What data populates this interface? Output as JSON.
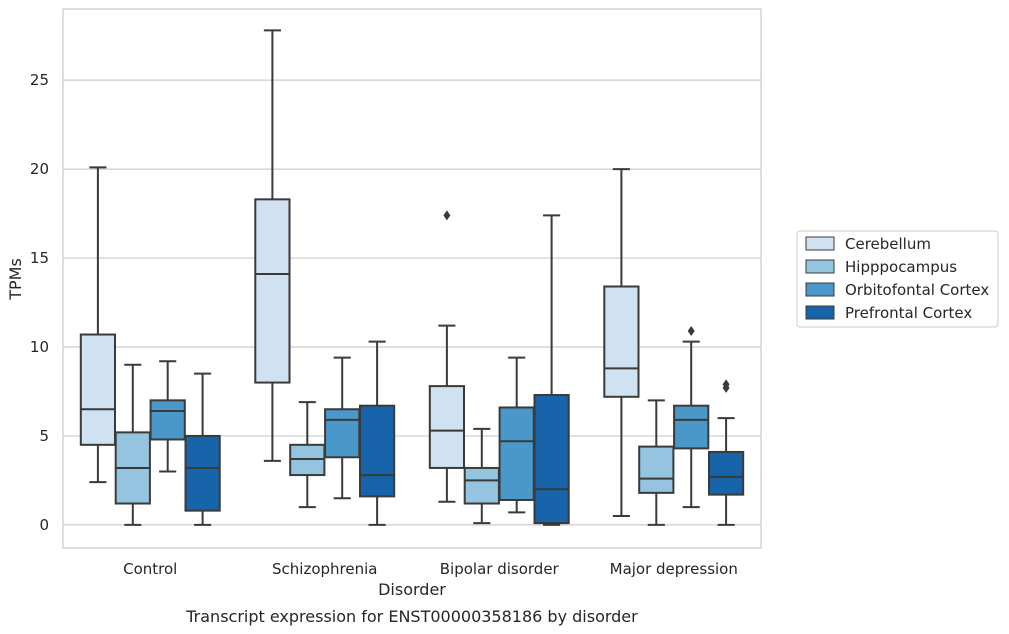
{
  "chart_data": {
    "type": "box",
    "xlabel": "Disorder",
    "ylabel": "TPMs",
    "caption": "Transcript expression for ENST00000358186 by disorder",
    "categories": [
      "Control",
      "Schizophrenia",
      "Bipolar disorder",
      "Major depression"
    ],
    "ylim": [
      -1.3,
      29
    ],
    "yticks": [
      0,
      5,
      10,
      15,
      20,
      25
    ],
    "grid": true,
    "legend_position": "right",
    "series": [
      {
        "name": "Cerebellum",
        "color": "#d0e1f2",
        "boxes": [
          {
            "whisker_low": 2.4,
            "q1": 4.5,
            "median": 6.5,
            "q3": 10.7,
            "whisker_high": 20.1,
            "outliers": []
          },
          {
            "whisker_low": 3.6,
            "q1": 8.0,
            "median": 14.1,
            "q3": 18.3,
            "whisker_high": 27.8,
            "outliers": []
          },
          {
            "whisker_low": 1.3,
            "q1": 3.2,
            "median": 5.3,
            "q3": 7.8,
            "whisker_high": 11.2,
            "outliers": [
              17.4
            ]
          },
          {
            "whisker_low": 0.5,
            "q1": 7.2,
            "median": 8.8,
            "q3": 13.4,
            "whisker_high": 20.0,
            "outliers": []
          }
        ]
      },
      {
        "name": "Hipppocampus",
        "color": "#94c4df",
        "boxes": [
          {
            "whisker_low": 0.0,
            "q1": 1.2,
            "median": 3.2,
            "q3": 5.2,
            "whisker_high": 9.0,
            "outliers": []
          },
          {
            "whisker_low": 1.0,
            "q1": 2.8,
            "median": 3.7,
            "q3": 4.5,
            "whisker_high": 6.9,
            "outliers": []
          },
          {
            "whisker_low": 0.1,
            "q1": 1.2,
            "median": 2.5,
            "q3": 3.2,
            "whisker_high": 5.4,
            "outliers": []
          },
          {
            "whisker_low": 0.0,
            "q1": 1.8,
            "median": 2.6,
            "q3": 4.4,
            "whisker_high": 7.0,
            "outliers": []
          }
        ]
      },
      {
        "name": "Orbitofontal Cortex",
        "color": "#4a98c9",
        "boxes": [
          {
            "whisker_low": 3.0,
            "q1": 4.8,
            "median": 6.4,
            "q3": 7.0,
            "whisker_high": 9.2,
            "outliers": []
          },
          {
            "whisker_low": 1.5,
            "q1": 3.8,
            "median": 5.9,
            "q3": 6.5,
            "whisker_high": 9.4,
            "outliers": []
          },
          {
            "whisker_low": 0.7,
            "q1": 1.4,
            "median": 4.7,
            "q3": 6.6,
            "whisker_high": 9.4,
            "outliers": []
          },
          {
            "whisker_low": 1.0,
            "q1": 4.3,
            "median": 5.9,
            "q3": 6.7,
            "whisker_high": 10.3,
            "outliers": [
              10.9
            ]
          }
        ]
      },
      {
        "name": "Prefrontal Cortex",
        "color": "#1764ab",
        "boxes": [
          {
            "whisker_low": 0.0,
            "q1": 0.8,
            "median": 3.2,
            "q3": 5.0,
            "whisker_high": 8.5,
            "outliers": []
          },
          {
            "whisker_low": 0.0,
            "q1": 1.6,
            "median": 2.8,
            "q3": 6.7,
            "whisker_high": 10.3,
            "outliers": []
          },
          {
            "whisker_low": 0.0,
            "q1": 0.1,
            "median": 2.0,
            "q3": 7.3,
            "whisker_high": 17.4,
            "outliers": []
          },
          {
            "whisker_low": 0.0,
            "q1": 1.7,
            "median": 2.7,
            "q3": 4.1,
            "whisker_high": 6.0,
            "outliers": [
              7.7,
              7.9
            ]
          }
        ]
      }
    ]
  }
}
